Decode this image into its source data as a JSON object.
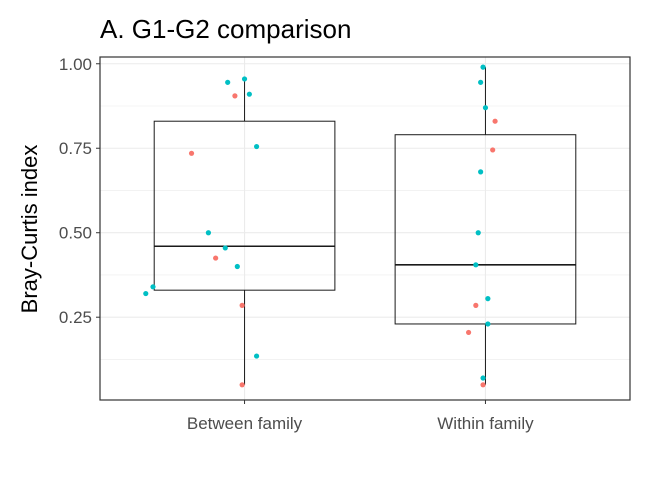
{
  "chart_data": {
    "type": "box",
    "title": "A. G1-G2 comparison",
    "xlabel": "",
    "ylabel": "Bray-Curtis index",
    "ylim": [
      0.005,
      1.02
    ],
    "yticks": [
      0.25,
      0.5,
      0.75,
      1.0
    ],
    "ytick_labels": [
      "0.25",
      "0.50",
      "0.75",
      "1.00"
    ],
    "categories": [
      "Between family",
      "Within family"
    ],
    "grid": true,
    "legend": "none",
    "colors": {
      "teal": "#00BFC4",
      "salmon": "#F8766D",
      "line": "#1a1a1a",
      "grid": "#ebebeb"
    },
    "boxes": [
      {
        "category": "Between family",
        "min": 0.05,
        "q1": 0.33,
        "median": 0.46,
        "q3": 0.83,
        "max": 0.955
      },
      {
        "category": "Within family",
        "min": 0.05,
        "q1": 0.23,
        "median": 0.405,
        "q3": 0.79,
        "max": 0.99
      }
    ],
    "points": [
      {
        "category": "Between family",
        "jitter": 0.0,
        "y": 0.955,
        "color": "teal"
      },
      {
        "category": "Between family",
        "jitter": -0.07,
        "y": 0.945,
        "color": "teal"
      },
      {
        "category": "Between family",
        "jitter": 0.02,
        "y": 0.91,
        "color": "teal"
      },
      {
        "category": "Between family",
        "jitter": -0.04,
        "y": 0.905,
        "color": "salmon"
      },
      {
        "category": "Between family",
        "jitter": 0.05,
        "y": 0.755,
        "color": "teal"
      },
      {
        "category": "Between family",
        "jitter": -0.22,
        "y": 0.735,
        "color": "salmon"
      },
      {
        "category": "Between family",
        "jitter": -0.15,
        "y": 0.5,
        "color": "teal"
      },
      {
        "category": "Between family",
        "jitter": -0.08,
        "y": 0.455,
        "color": "teal"
      },
      {
        "category": "Between family",
        "jitter": -0.12,
        "y": 0.425,
        "color": "salmon"
      },
      {
        "category": "Between family",
        "jitter": -0.03,
        "y": 0.4,
        "color": "teal"
      },
      {
        "category": "Between family",
        "jitter": -0.38,
        "y": 0.34,
        "color": "teal"
      },
      {
        "category": "Between family",
        "jitter": -0.41,
        "y": 0.32,
        "color": "teal"
      },
      {
        "category": "Between family",
        "jitter": -0.01,
        "y": 0.285,
        "color": "salmon"
      },
      {
        "category": "Between family",
        "jitter": 0.05,
        "y": 0.135,
        "color": "teal"
      },
      {
        "category": "Between family",
        "jitter": -0.01,
        "y": 0.05,
        "color": "salmon"
      },
      {
        "category": "Within family",
        "jitter": -0.01,
        "y": 0.99,
        "color": "teal"
      },
      {
        "category": "Within family",
        "jitter": -0.02,
        "y": 0.945,
        "color": "teal"
      },
      {
        "category": "Within family",
        "jitter": 0.0,
        "y": 0.87,
        "color": "teal"
      },
      {
        "category": "Within family",
        "jitter": 0.04,
        "y": 0.83,
        "color": "salmon"
      },
      {
        "category": "Within family",
        "jitter": 0.03,
        "y": 0.745,
        "color": "salmon"
      },
      {
        "category": "Within family",
        "jitter": -0.02,
        "y": 0.68,
        "color": "teal"
      },
      {
        "category": "Within family",
        "jitter": -0.03,
        "y": 0.5,
        "color": "teal"
      },
      {
        "category": "Within family",
        "jitter": -0.04,
        "y": 0.405,
        "color": "teal"
      },
      {
        "category": "Within family",
        "jitter": 0.01,
        "y": 0.305,
        "color": "teal"
      },
      {
        "category": "Within family",
        "jitter": -0.04,
        "y": 0.285,
        "color": "salmon"
      },
      {
        "category": "Within family",
        "jitter": 0.01,
        "y": 0.23,
        "color": "teal"
      },
      {
        "category": "Within family",
        "jitter": -0.07,
        "y": 0.205,
        "color": "salmon"
      },
      {
        "category": "Within family",
        "jitter": -0.01,
        "y": 0.07,
        "color": "teal"
      },
      {
        "category": "Within family",
        "jitter": -0.01,
        "y": 0.05,
        "color": "salmon"
      }
    ]
  }
}
